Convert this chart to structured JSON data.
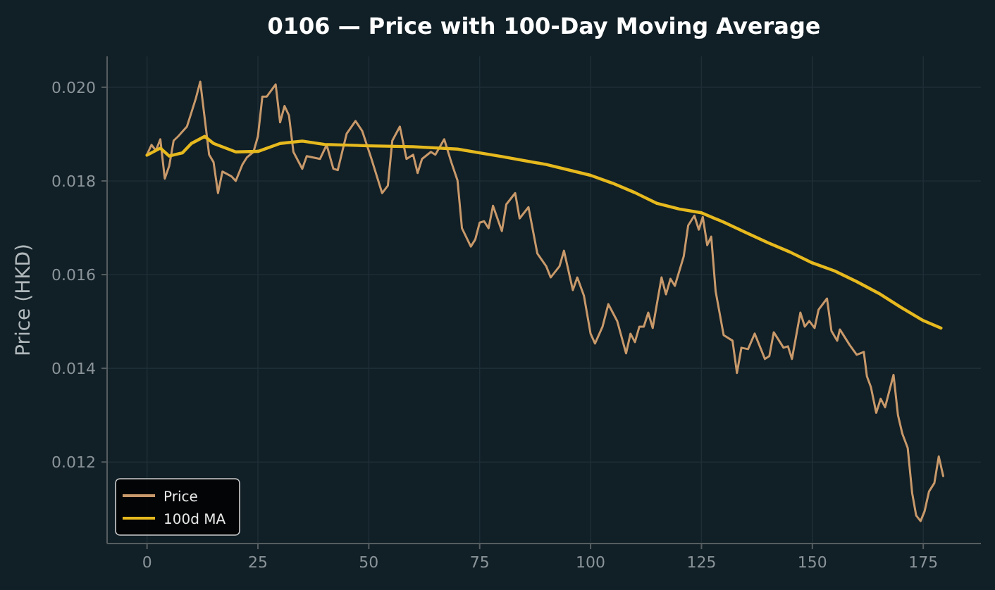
{
  "chart_data": {
    "type": "line",
    "title": "0106 — Price with 100-Day Moving Average",
    "ylabel": "Price (HKD)",
    "xlim": [
      -9,
      188
    ],
    "xticks": [
      0,
      25,
      50,
      75,
      100,
      125,
      150,
      175
    ],
    "ylim": [
      0.01026,
      0.02066
    ],
    "yticks": [
      {
        "value": 0.012,
        "label": "0.012"
      },
      {
        "value": 0.014,
        "label": "0.014"
      },
      {
        "value": 0.016,
        "label": "0.016"
      },
      {
        "value": 0.018,
        "label": "0.018"
      },
      {
        "value": 0.02,
        "label": "0.020"
      }
    ],
    "grid": true,
    "legend": "bottom left",
    "line_style": "solid",
    "marker": "none",
    "series": [
      {
        "name": "Price",
        "color": "#c8996a",
        "x": [
          0,
          1,
          2,
          3,
          4,
          5,
          6,
          7,
          9,
          10,
          11,
          12,
          14,
          15,
          16,
          17,
          19,
          20,
          21.5,
          22.5,
          24,
          25,
          26,
          27,
          29,
          30,
          31,
          32,
          33,
          35,
          36,
          39,
          40.5,
          42,
          43,
          45,
          47,
          48.5,
          50.5,
          53,
          54.3,
          55.3,
          57,
          58.5,
          60,
          61,
          62,
          64,
          65,
          67,
          68.6,
          70,
          71,
          73,
          74,
          75,
          76,
          77,
          78,
          80,
          81,
          83,
          84,
          86,
          88,
          90,
          91,
          92.5,
          93,
          94,
          96,
          97,
          98.5,
          100,
          101,
          102.7,
          104,
          106,
          108,
          109,
          110,
          111,
          112,
          113,
          114,
          116,
          117,
          118,
          119,
          121,
          122,
          123.4,
          124.4,
          125.3,
          126.3,
          127.2,
          128.2,
          130,
          132,
          133,
          134,
          135.5,
          137,
          139.3,
          140.3,
          141.3,
          143.5,
          144.5,
          145.4,
          147.3,
          148.3,
          149.3,
          150.5,
          151.4,
          153.3,
          154.3,
          155.6,
          156.2,
          158.4,
          160,
          161.6,
          162.3,
          163.2,
          164.4,
          165.4,
          166.4,
          168.3,
          169.3,
          170.3,
          171.5,
          172.5,
          173.4,
          174.4,
          175.3,
          176.3,
          177.5,
          178.5,
          179.5
        ],
        "values": [
          0.01856,
          0.01877,
          0.01865,
          0.01889,
          0.01805,
          0.01832,
          0.01886,
          0.01895,
          0.01916,
          0.01946,
          0.01976,
          0.02012,
          0.01856,
          0.0184,
          0.01774,
          0.0182,
          0.0181,
          0.018,
          0.01835,
          0.0185,
          0.01862,
          0.01895,
          0.0198,
          0.0198,
          0.02006,
          0.01925,
          0.0196,
          0.0194,
          0.01862,
          0.01826,
          0.01853,
          0.01847,
          0.01877,
          0.01826,
          0.01823,
          0.01901,
          0.01928,
          0.01907,
          0.0185,
          0.01774,
          0.0179,
          0.01886,
          0.01916,
          0.01847,
          0.01856,
          0.01817,
          0.01847,
          0.01862,
          0.01856,
          0.01889,
          0.0184,
          0.01801,
          0.01699,
          0.0166,
          0.01675,
          0.01711,
          0.01714,
          0.01699,
          0.01747,
          0.01693,
          0.0175,
          0.01774,
          0.0172,
          0.01744,
          0.01645,
          0.01618,
          0.01594,
          0.01612,
          0.01618,
          0.01651,
          0.01567,
          0.01594,
          0.01555,
          0.01474,
          0.01453,
          0.01489,
          0.01537,
          0.01501,
          0.01432,
          0.01474,
          0.01456,
          0.01489,
          0.01489,
          0.01519,
          0.01486,
          0.01594,
          0.01558,
          0.01591,
          0.01576,
          0.01639,
          0.01705,
          0.01726,
          0.01696,
          0.01723,
          0.01663,
          0.01681,
          0.01564,
          0.01471,
          0.01459,
          0.0139,
          0.01444,
          0.01441,
          0.01474,
          0.0142,
          0.01426,
          0.01477,
          0.01444,
          0.01447,
          0.0142,
          0.01519,
          0.01489,
          0.01501,
          0.01486,
          0.01525,
          0.01549,
          0.0148,
          0.01459,
          0.01483,
          0.0145,
          0.01429,
          0.01435,
          0.01383,
          0.0136,
          0.01305,
          0.01335,
          0.01317,
          0.01386,
          0.013,
          0.0126,
          0.0123,
          0.01134,
          0.01086,
          0.01074,
          0.01095,
          0.01137,
          0.01155,
          0.01212,
          0.0117
        ]
      },
      {
        "name": "100d MA",
        "color": "#e6b91e",
        "x": [
          0,
          3,
          5,
          8,
          10,
          13,
          15,
          20,
          25,
          30,
          35,
          40,
          50,
          60,
          70,
          75,
          80,
          90,
          100,
          105,
          110,
          115,
          120,
          125,
          130,
          135,
          140,
          145,
          150,
          155,
          160,
          165,
          170,
          175,
          179
        ],
        "values": [
          0.01855,
          0.0187,
          0.01853,
          0.0186,
          0.0188,
          0.01895,
          0.0188,
          0.01862,
          0.01863,
          0.0188,
          0.01885,
          0.01878,
          0.01875,
          0.01873,
          0.01868,
          0.0186,
          0.01852,
          0.01835,
          0.01812,
          0.01795,
          0.01775,
          0.01752,
          0.0174,
          0.01732,
          0.01712,
          0.0169,
          0.01668,
          0.01648,
          0.01625,
          0.01608,
          0.01585,
          0.0156,
          0.0153,
          0.01502,
          0.01486
        ]
      }
    ]
  }
}
